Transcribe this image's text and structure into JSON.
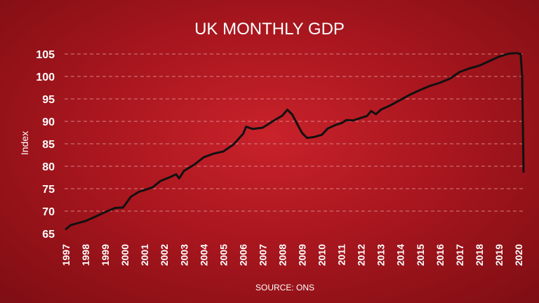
{
  "chart_data": {
    "type": "line",
    "title": "UK MONTHLY GDP",
    "ylabel": "Index",
    "xlabel": "",
    "source": "SOURCE: ONS",
    "ylim": [
      65,
      105
    ],
    "yticks": [
      65,
      70,
      75,
      80,
      85,
      90,
      95,
      100,
      105
    ],
    "xlim": [
      1997,
      2020.3
    ],
    "xticks": [
      "1997",
      "1998",
      "1999",
      "2000",
      "2001",
      "2002",
      "2003",
      "2004",
      "2005",
      "2006",
      "2007",
      "2008",
      "2009",
      "2010",
      "2011",
      "2012",
      "2013",
      "2014",
      "2015",
      "2016",
      "2017",
      "2018",
      "2019",
      "2020"
    ],
    "grid": true,
    "series": [
      {
        "values": [
          {
            "x": 1997.0,
            "y": 66.0
          },
          {
            "x": 1997.25,
            "y": 66.9
          },
          {
            "x": 1997.5,
            "y": 67.2
          },
          {
            "x": 1998.0,
            "y": 67.8
          },
          {
            "x": 1998.5,
            "y": 68.8
          },
          {
            "x": 1999.0,
            "y": 69.8
          },
          {
            "x": 1999.5,
            "y": 70.7
          },
          {
            "x": 1999.9,
            "y": 70.8
          },
          {
            "x": 2000.3,
            "y": 73.2
          },
          {
            "x": 2000.7,
            "y": 74.3
          },
          {
            "x": 2001.0,
            "y": 74.7
          },
          {
            "x": 2001.4,
            "y": 75.3
          },
          {
            "x": 2001.8,
            "y": 76.7
          },
          {
            "x": 2002.3,
            "y": 77.6
          },
          {
            "x": 2002.6,
            "y": 78.2
          },
          {
            "x": 2002.75,
            "y": 77.3
          },
          {
            "x": 2003.0,
            "y": 79.0
          },
          {
            "x": 2003.5,
            "y": 80.3
          },
          {
            "x": 2004.0,
            "y": 82.0
          },
          {
            "x": 2004.5,
            "y": 82.8
          },
          {
            "x": 2005.0,
            "y": 83.3
          },
          {
            "x": 2005.5,
            "y": 84.8
          },
          {
            "x": 2006.0,
            "y": 87.2
          },
          {
            "x": 2006.15,
            "y": 88.8
          },
          {
            "x": 2006.5,
            "y": 88.3
          },
          {
            "x": 2007.0,
            "y": 88.6
          },
          {
            "x": 2007.5,
            "y": 90.0
          },
          {
            "x": 2008.0,
            "y": 91.3
          },
          {
            "x": 2008.25,
            "y": 92.6
          },
          {
            "x": 2008.5,
            "y": 91.5
          },
          {
            "x": 2008.8,
            "y": 89.0
          },
          {
            "x": 2009.0,
            "y": 87.4
          },
          {
            "x": 2009.25,
            "y": 86.3
          },
          {
            "x": 2009.6,
            "y": 86.5
          },
          {
            "x": 2010.0,
            "y": 87.0
          },
          {
            "x": 2010.3,
            "y": 88.4
          },
          {
            "x": 2010.7,
            "y": 89.2
          },
          {
            "x": 2011.0,
            "y": 89.6
          },
          {
            "x": 2011.25,
            "y": 90.3
          },
          {
            "x": 2011.6,
            "y": 90.2
          },
          {
            "x": 2012.0,
            "y": 90.8
          },
          {
            "x": 2012.3,
            "y": 91.2
          },
          {
            "x": 2012.5,
            "y": 92.3
          },
          {
            "x": 2012.75,
            "y": 91.6
          },
          {
            "x": 2013.0,
            "y": 92.6
          },
          {
            "x": 2013.5,
            "y": 93.6
          },
          {
            "x": 2014.0,
            "y": 94.8
          },
          {
            "x": 2014.5,
            "y": 96.0
          },
          {
            "x": 2015.0,
            "y": 97.0
          },
          {
            "x": 2015.5,
            "y": 97.9
          },
          {
            "x": 2016.0,
            "y": 98.6
          },
          {
            "x": 2016.5,
            "y": 99.5
          },
          {
            "x": 2017.0,
            "y": 101.0
          },
          {
            "x": 2017.5,
            "y": 101.8
          },
          {
            "x": 2018.0,
            "y": 102.4
          },
          {
            "x": 2018.5,
            "y": 103.4
          },
          {
            "x": 2019.0,
            "y": 104.4
          },
          {
            "x": 2019.5,
            "y": 105.1
          },
          {
            "x": 2019.9,
            "y": 105.2
          },
          {
            "x": 2020.1,
            "y": 105.0
          },
          {
            "x": 2020.18,
            "y": 100.0
          },
          {
            "x": 2020.25,
            "y": 78.8
          }
        ]
      }
    ]
  }
}
